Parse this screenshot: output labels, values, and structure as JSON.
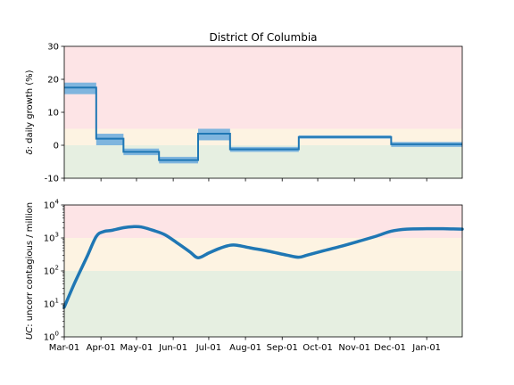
{
  "chart_data": [
    {
      "type": "line",
      "title": "District Of Columbia",
      "ylabel_symbol": "δ",
      "ylabel_text": ": daily growth (%)",
      "xlim": [
        "2020-03-01",
        "2021-01-31"
      ],
      "ylim": [
        -10,
        30
      ],
      "yticks": [
        -10,
        0,
        10,
        20,
        30
      ],
      "zones": [
        {
          "from": 5,
          "to": 30,
          "color": "#fde4e6"
        },
        {
          "from": 0,
          "to": 5,
          "color": "#fdf3e2"
        },
        {
          "from": -10,
          "to": 0,
          "color": "#e6efe1"
        }
      ],
      "series": [
        {
          "type": "step",
          "segments": [
            {
              "start": "2020-03-01",
              "end": "2020-03-28",
              "value": 17.5,
              "lo": 15.5,
              "hi": 19.0
            },
            {
              "start": "2020-03-28",
              "end": "2020-04-20",
              "value": 2.0,
              "lo": 0.0,
              "hi": 3.5
            },
            {
              "start": "2020-04-20",
              "end": "2020-05-20",
              "value": -2.0,
              "lo": -3.0,
              "hi": -1.0
            },
            {
              "start": "2020-05-20",
              "end": "2020-06-22",
              "value": -4.5,
              "lo": -5.5,
              "hi": -3.5
            },
            {
              "start": "2020-06-22",
              "end": "2020-07-19",
              "value": 3.5,
              "lo": 1.5,
              "hi": 5.0
            },
            {
              "start": "2020-07-19",
              "end": "2020-09-15",
              "value": -1.2,
              "lo": -2.0,
              "hi": -0.5
            },
            {
              "start": "2020-09-15",
              "end": "2020-12-02",
              "value": 2.5,
              "lo": 2.0,
              "hi": 3.0
            },
            {
              "start": "2020-12-02",
              "end": "2021-01-31",
              "value": 0.3,
              "lo": -0.5,
              "hi": 1.0
            }
          ],
          "line_color": "#1f77b4",
          "band_color": "#7fb5de"
        }
      ]
    },
    {
      "type": "line",
      "ylabel_symbol": "UC",
      "ylabel_text": ": uncorr contagious / million",
      "xlim": [
        "2020-03-01",
        "2021-01-31"
      ],
      "yscale": "log",
      "ylim": [
        1,
        10000
      ],
      "ytick_exponents": [
        0,
        1,
        2,
        3,
        4
      ],
      "xticks": [
        "2020-03-01",
        "2020-04-01",
        "2020-05-01",
        "2020-06-01",
        "2020-07-01",
        "2020-08-01",
        "2020-09-01",
        "2020-10-01",
        "2020-11-01",
        "2020-12-01",
        "2021-01-01"
      ],
      "xtick_labels": [
        "Mar-01",
        "Apr-01",
        "May-01",
        "Jun-01",
        "Jul-01",
        "Aug-01",
        "Sep-01",
        "Oct-01",
        "Nov-01",
        "Dec-01",
        "Jan-01"
      ],
      "zones": [
        {
          "from": 1000,
          "to": 10000,
          "color": "#fde4e6"
        },
        {
          "from": 100,
          "to": 1000,
          "color": "#fdf3e2"
        },
        {
          "from": 1,
          "to": 100,
          "color": "#e6efe1"
        }
      ],
      "series": [
        {
          "type": "line",
          "color": "#1f77b4",
          "x": [
            "2020-03-01",
            "2020-03-10",
            "2020-03-20",
            "2020-03-28",
            "2020-04-03",
            "2020-04-10",
            "2020-04-20",
            "2020-04-28",
            "2020-05-05",
            "2020-05-15",
            "2020-05-25",
            "2020-06-05",
            "2020-06-15",
            "2020-06-22",
            "2020-07-01",
            "2020-07-10",
            "2020-07-19",
            "2020-07-25",
            "2020-08-05",
            "2020-08-20",
            "2020-09-05",
            "2020-09-15",
            "2020-09-22",
            "2020-10-05",
            "2020-10-20",
            "2020-11-05",
            "2020-11-20",
            "2020-12-02",
            "2020-12-15",
            "2021-01-01",
            "2021-01-15",
            "2021-01-31"
          ],
          "values": [
            8,
            45,
            260,
            1100,
            1550,
            1700,
            2050,
            2200,
            2150,
            1700,
            1250,
            680,
            380,
            250,
            350,
            480,
            600,
            600,
            500,
            400,
            300,
            260,
            300,
            400,
            550,
            800,
            1150,
            1600,
            1850,
            1900,
            1900,
            1850
          ]
        }
      ]
    }
  ]
}
